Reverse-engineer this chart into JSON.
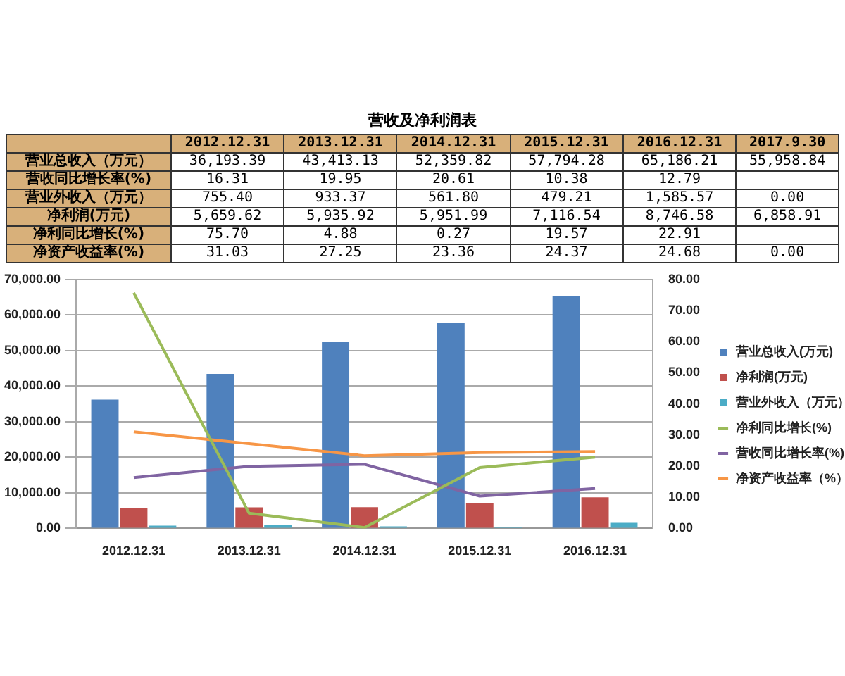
{
  "chart_data": [
    {
      "type": "other",
      "title": "营收及净利润表",
      "categories": [
        "2012.12.31",
        "2013.12.31",
        "2014.12.31",
        "2015.12.31",
        "2016.12.31",
        "2017.9.30"
      ],
      "series": [
        {
          "name": "营业总收入（万元）",
          "values": [
            36193.39,
            43413.13,
            52359.82,
            57794.28,
            65186.21,
            55958.84
          ],
          "value_labels": [
            "36,193.39",
            "43,413.13",
            "52,359.82",
            "57,794.28",
            "65,186.21",
            "55,958.84"
          ]
        },
        {
          "name": "营收同比增长率(%)",
          "values": [
            16.31,
            19.95,
            20.61,
            10.38,
            12.79,
            null
          ],
          "value_labels": [
            "16.31",
            "19.95",
            "20.61",
            "10.38",
            "12.79",
            null
          ]
        },
        {
          "name": "营业外收入（万元）",
          "values": [
            755.4,
            933.37,
            561.8,
            479.21,
            1585.57,
            0.0
          ],
          "value_labels": [
            "755.40",
            "933.37",
            "561.80",
            "479.21",
            "1,585.57",
            "0.00"
          ]
        },
        {
          "name": "净利润(万元)",
          "values": [
            5659.62,
            5935.92,
            5951.99,
            7116.54,
            8746.58,
            6858.91
          ],
          "value_labels": [
            "5,659.62",
            "5,935.92",
            "5,951.99",
            "7,116.54",
            "8,746.58",
            "6,858.91"
          ]
        },
        {
          "name": "净利同比增长(%)",
          "values": [
            75.7,
            4.88,
            0.27,
            19.57,
            22.91,
            null
          ],
          "value_labels": [
            "75.70",
            "4.88",
            "0.27",
            "19.57",
            "22.91",
            null
          ]
        },
        {
          "name": "净资产收益率(%)",
          "values": [
            31.03,
            27.25,
            23.36,
            24.37,
            24.68,
            0.0
          ],
          "value_labels": [
            "31.03",
            "27.25",
            "23.36",
            "24.37",
            "24.68",
            "0.00"
          ]
        }
      ]
    },
    {
      "type": "bar",
      "categories": [
        "2012.12.31",
        "2013.12.31",
        "2014.12.31",
        "2015.12.31",
        "2016.12.31"
      ],
      "grid": "y",
      "legend": "right",
      "marker": "none",
      "ylim": [
        0,
        70000
      ],
      "yticks": [
        {
          "value": 0,
          "label": "0.00"
        },
        {
          "value": 10000,
          "label": "10,000.00"
        },
        {
          "value": 20000,
          "label": "20,000.00"
        },
        {
          "value": 30000,
          "label": "30,000.00"
        },
        {
          "value": 40000,
          "label": "40,000.00"
        },
        {
          "value": 50000,
          "label": "50,000.00"
        },
        {
          "value": 60000,
          "label": "60,000.00"
        },
        {
          "value": 70000,
          "label": "70,000.00"
        }
      ],
      "y2lim": [
        0,
        80
      ],
      "y2ticks": [
        {
          "value": 0,
          "label": "0.00"
        },
        {
          "value": 10,
          "label": "10.00"
        },
        {
          "value": 20,
          "label": "20.00"
        },
        {
          "value": 30,
          "label": "30.00"
        },
        {
          "value": 40,
          "label": "40.00"
        },
        {
          "value": 50,
          "label": "50.00"
        },
        {
          "value": 60,
          "label": "60.00"
        },
        {
          "value": 70,
          "label": "70.00"
        },
        {
          "value": 80,
          "label": "80.00"
        }
      ],
      "series": [
        {
          "name": "营业总收入(万元)",
          "color": "#4f81bd",
          "values": [
            36193.39,
            43413.13,
            52359.82,
            57794.28,
            65186.21
          ]
        },
        {
          "name": "净利润(万元)",
          "color": "#c0504d",
          "values": [
            5659.62,
            5935.92,
            5951.99,
            7116.54,
            8746.58
          ]
        },
        {
          "name": "营业外收入（万元）",
          "color": "#4bacc6",
          "values": [
            755.4,
            933.37,
            561.8,
            479.21,
            1585.57
          ]
        },
        {
          "name": "净利同比增长(%)",
          "type": "line",
          "axis": "y2",
          "color": "#9bbb59",
          "values": [
            75.7,
            4.88,
            0.27,
            19.57,
            22.91
          ]
        },
        {
          "name": "营收同比增长率(%)",
          "type": "line",
          "axis": "y2",
          "color": "#8064a2",
          "values": [
            16.31,
            19.95,
            20.61,
            10.38,
            12.79
          ]
        },
        {
          "name": "净资产收益率（%）",
          "type": "line",
          "axis": "y2",
          "color": "#f79646",
          "values": [
            31.03,
            27.25,
            23.36,
            24.37,
            24.68
          ]
        }
      ]
    }
  ]
}
